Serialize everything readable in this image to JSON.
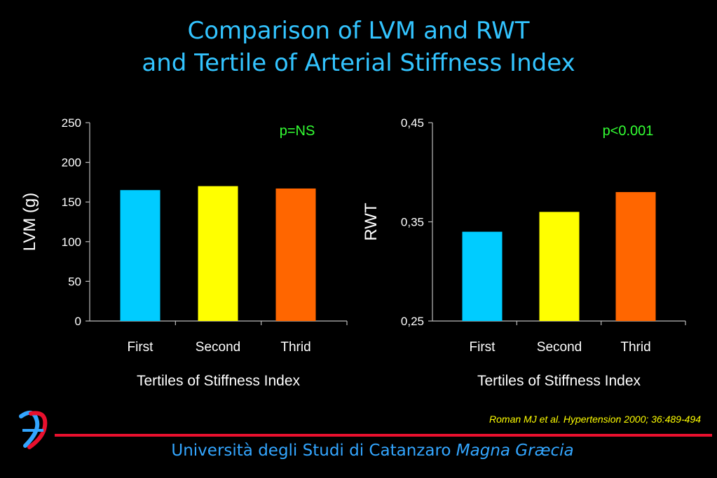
{
  "title": {
    "line1": "Comparison of LVM and RWT",
    "line2": "and Tertile of Arterial Stiffness Index"
  },
  "citation": "Roman MJ et al. Hypertension 2000; 36:489-494",
  "footer": {
    "text": "Università degli Studi di Catanzaro ",
    "italic": "Magna Græcia"
  },
  "logo": {
    "icon": "university-logo-icon",
    "colors": [
      "#e8102e",
      "#33a6ff"
    ]
  },
  "colors": {
    "title": "#33c4ff",
    "pvalue": "#33ff33",
    "divider": "#e8102e"
  },
  "chart_data": [
    {
      "type": "bar",
      "categories": [
        "First",
        "Second",
        "Thrid"
      ],
      "values": [
        165,
        170,
        167
      ],
      "colors": [
        "#00ccff",
        "#ffff00",
        "#ff6600"
      ],
      "xlabel": "Tertiles of Stiffness Index",
      "ylabel": "LVM (g)",
      "ylim": [
        0,
        250
      ],
      "yticks": [
        "0",
        "50",
        "100",
        "150",
        "200",
        "250"
      ],
      "annotation": "p=NS",
      "grid": false
    },
    {
      "type": "bar",
      "categories": [
        "First",
        "Second",
        "Thrid"
      ],
      "values": [
        0.34,
        0.36,
        0.38
      ],
      "colors": [
        "#00ccff",
        "#ffff00",
        "#ff6600"
      ],
      "xlabel": "Tertiles of Stiffness Index",
      "ylabel": "RWT",
      "ylim": [
        0.25,
        0.45
      ],
      "yticks": [
        "0,25",
        "0,35",
        "0,45"
      ],
      "annotation": "p<0.001",
      "grid": false
    }
  ]
}
